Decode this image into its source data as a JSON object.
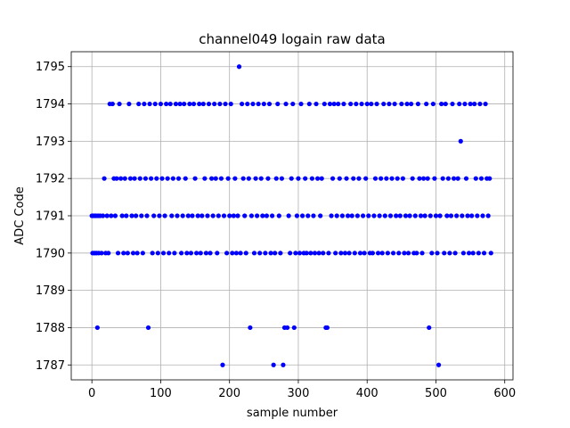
{
  "chart_data": {
    "type": "scatter",
    "title": "channel049 logain raw data",
    "xlabel": "sample number",
    "ylabel": "ADC Code",
    "xlim": [
      -30,
      612
    ],
    "ylim": [
      1786.6,
      1795.4
    ],
    "xticks": [
      0,
      100,
      200,
      300,
      400,
      500,
      600
    ],
    "yticks": [
      1787,
      1788,
      1789,
      1790,
      1791,
      1792,
      1793,
      1794,
      1795
    ],
    "grid": true,
    "marker_color": "#0000ff",
    "series": [
      {
        "points": [
          [
            0,
            1791
          ],
          [
            1,
            1790
          ],
          [
            2,
            1791
          ],
          [
            3,
            1790
          ],
          [
            4,
            1791
          ],
          [
            5,
            1790
          ],
          [
            6,
            1791
          ],
          [
            7,
            1790
          ],
          [
            8,
            1788
          ],
          [
            9,
            1791
          ],
          [
            10,
            1790
          ],
          [
            12,
            1791
          ],
          [
            14,
            1790
          ],
          [
            16,
            1791
          ],
          [
            18,
            1792
          ],
          [
            20,
            1790
          ],
          [
            22,
            1791
          ],
          [
            24,
            1790
          ],
          [
            26,
            1794
          ],
          [
            28,
            1791
          ],
          [
            30,
            1794
          ],
          [
            32,
            1792
          ],
          [
            34,
            1791
          ],
          [
            36,
            1792
          ],
          [
            38,
            1790
          ],
          [
            40,
            1794
          ],
          [
            42,
            1792
          ],
          [
            44,
            1791
          ],
          [
            46,
            1790
          ],
          [
            48,
            1792
          ],
          [
            50,
            1791
          ],
          [
            52,
            1790
          ],
          [
            54,
            1794
          ],
          [
            56,
            1792
          ],
          [
            58,
            1791
          ],
          [
            60,
            1790
          ],
          [
            62,
            1792
          ],
          [
            64,
            1791
          ],
          [
            66,
            1790
          ],
          [
            68,
            1794
          ],
          [
            70,
            1792
          ],
          [
            72,
            1791
          ],
          [
            74,
            1790
          ],
          [
            76,
            1794
          ],
          [
            78,
            1792
          ],
          [
            80,
            1791
          ],
          [
            82,
            1788
          ],
          [
            84,
            1794
          ],
          [
            86,
            1792
          ],
          [
            88,
            1790
          ],
          [
            90,
            1791
          ],
          [
            92,
            1794
          ],
          [
            94,
            1792
          ],
          [
            96,
            1790
          ],
          [
            98,
            1791
          ],
          [
            100,
            1794
          ],
          [
            102,
            1792
          ],
          [
            104,
            1790
          ],
          [
            106,
            1791
          ],
          [
            108,
            1794
          ],
          [
            110,
            1792
          ],
          [
            112,
            1790
          ],
          [
            114,
            1794
          ],
          [
            116,
            1791
          ],
          [
            118,
            1792
          ],
          [
            120,
            1790
          ],
          [
            122,
            1794
          ],
          [
            124,
            1791
          ],
          [
            126,
            1792
          ],
          [
            128,
            1794
          ],
          [
            130,
            1790
          ],
          [
            132,
            1791
          ],
          [
            134,
            1794
          ],
          [
            136,
            1792
          ],
          [
            138,
            1790
          ],
          [
            140,
            1791
          ],
          [
            142,
            1794
          ],
          [
            144,
            1790
          ],
          [
            146,
            1791
          ],
          [
            148,
            1794
          ],
          [
            150,
            1792
          ],
          [
            152,
            1790
          ],
          [
            154,
            1791
          ],
          [
            156,
            1794
          ],
          [
            158,
            1790
          ],
          [
            160,
            1791
          ],
          [
            162,
            1794
          ],
          [
            164,
            1792
          ],
          [
            166,
            1790
          ],
          [
            168,
            1791
          ],
          [
            170,
            1794
          ],
          [
            172,
            1790
          ],
          [
            174,
            1792
          ],
          [
            176,
            1791
          ],
          [
            178,
            1794
          ],
          [
            180,
            1792
          ],
          [
            182,
            1790
          ],
          [
            184,
            1791
          ],
          [
            186,
            1794
          ],
          [
            188,
            1792
          ],
          [
            190,
            1787
          ],
          [
            192,
            1791
          ],
          [
            194,
            1794
          ],
          [
            196,
            1790
          ],
          [
            198,
            1792
          ],
          [
            200,
            1791
          ],
          [
            202,
            1794
          ],
          [
            204,
            1790
          ],
          [
            206,
            1791
          ],
          [
            208,
            1792
          ],
          [
            210,
            1790
          ],
          [
            212,
            1791
          ],
          [
            214,
            1795
          ],
          [
            216,
            1790
          ],
          [
            218,
            1794
          ],
          [
            220,
            1792
          ],
          [
            222,
            1791
          ],
          [
            224,
            1790
          ],
          [
            226,
            1794
          ],
          [
            228,
            1792
          ],
          [
            230,
            1788
          ],
          [
            232,
            1791
          ],
          [
            234,
            1794
          ],
          [
            236,
            1790
          ],
          [
            238,
            1792
          ],
          [
            240,
            1791
          ],
          [
            242,
            1794
          ],
          [
            244,
            1790
          ],
          [
            246,
            1792
          ],
          [
            248,
            1791
          ],
          [
            250,
            1794
          ],
          [
            252,
            1790
          ],
          [
            254,
            1791
          ],
          [
            256,
            1792
          ],
          [
            258,
            1794
          ],
          [
            260,
            1790
          ],
          [
            262,
            1791
          ],
          [
            264,
            1787
          ],
          [
            266,
            1790
          ],
          [
            268,
            1792
          ],
          [
            270,
            1794
          ],
          [
            272,
            1791
          ],
          [
            274,
            1790
          ],
          [
            276,
            1792
          ],
          [
            278,
            1787
          ],
          [
            280,
            1788
          ],
          [
            282,
            1794
          ],
          [
            284,
            1788
          ],
          [
            286,
            1791
          ],
          [
            288,
            1790
          ],
          [
            290,
            1792
          ],
          [
            292,
            1794
          ],
          [
            294,
            1788
          ],
          [
            296,
            1790
          ],
          [
            298,
            1791
          ],
          [
            300,
            1792
          ],
          [
            302,
            1790
          ],
          [
            304,
            1794
          ],
          [
            306,
            1791
          ],
          [
            308,
            1790
          ],
          [
            310,
            1792
          ],
          [
            312,
            1790
          ],
          [
            314,
            1791
          ],
          [
            316,
            1794
          ],
          [
            318,
            1790
          ],
          [
            320,
            1792
          ],
          [
            322,
            1791
          ],
          [
            324,
            1790
          ],
          [
            326,
            1794
          ],
          [
            328,
            1792
          ],
          [
            330,
            1790
          ],
          [
            332,
            1791
          ],
          [
            334,
            1792
          ],
          [
            336,
            1790
          ],
          [
            338,
            1794
          ],
          [
            340,
            1788
          ],
          [
            342,
            1788
          ],
          [
            344,
            1790
          ],
          [
            346,
            1794
          ],
          [
            348,
            1791
          ],
          [
            350,
            1792
          ],
          [
            352,
            1794
          ],
          [
            354,
            1790
          ],
          [
            356,
            1791
          ],
          [
            358,
            1794
          ],
          [
            360,
            1792
          ],
          [
            362,
            1790
          ],
          [
            364,
            1791
          ],
          [
            366,
            1794
          ],
          [
            368,
            1790
          ],
          [
            370,
            1792
          ],
          [
            372,
            1791
          ],
          [
            374,
            1790
          ],
          [
            376,
            1794
          ],
          [
            378,
            1791
          ],
          [
            380,
            1792
          ],
          [
            382,
            1790
          ],
          [
            384,
            1794
          ],
          [
            386,
            1791
          ],
          [
            388,
            1792
          ],
          [
            390,
            1790
          ],
          [
            392,
            1794
          ],
          [
            394,
            1791
          ],
          [
            396,
            1790
          ],
          [
            398,
            1792
          ],
          [
            400,
            1794
          ],
          [
            402,
            1791
          ],
          [
            404,
            1790
          ],
          [
            406,
            1794
          ],
          [
            408,
            1790
          ],
          [
            410,
            1791
          ],
          [
            412,
            1792
          ],
          [
            414,
            1794
          ],
          [
            416,
            1790
          ],
          [
            418,
            1791
          ],
          [
            420,
            1792
          ],
          [
            422,
            1790
          ],
          [
            424,
            1794
          ],
          [
            426,
            1791
          ],
          [
            428,
            1792
          ],
          [
            430,
            1790
          ],
          [
            432,
            1794
          ],
          [
            434,
            1791
          ],
          [
            436,
            1792
          ],
          [
            438,
            1790
          ],
          [
            440,
            1794
          ],
          [
            442,
            1791
          ],
          [
            444,
            1792
          ],
          [
            446,
            1790
          ],
          [
            448,
            1791
          ],
          [
            450,
            1794
          ],
          [
            452,
            1792
          ],
          [
            454,
            1790
          ],
          [
            456,
            1791
          ],
          [
            458,
            1794
          ],
          [
            460,
            1790
          ],
          [
            462,
            1791
          ],
          [
            464,
            1794
          ],
          [
            466,
            1792
          ],
          [
            468,
            1790
          ],
          [
            470,
            1791
          ],
          [
            472,
            1790
          ],
          [
            474,
            1794
          ],
          [
            476,
            1792
          ],
          [
            478,
            1791
          ],
          [
            480,
            1790
          ],
          [
            482,
            1792
          ],
          [
            484,
            1791
          ],
          [
            486,
            1794
          ],
          [
            488,
            1792
          ],
          [
            490,
            1788
          ],
          [
            492,
            1791
          ],
          [
            494,
            1790
          ],
          [
            496,
            1794
          ],
          [
            498,
            1792
          ],
          [
            500,
            1791
          ],
          [
            502,
            1790
          ],
          [
            504,
            1787
          ],
          [
            506,
            1791
          ],
          [
            508,
            1794
          ],
          [
            510,
            1792
          ],
          [
            512,
            1790
          ],
          [
            514,
            1794
          ],
          [
            516,
            1791
          ],
          [
            518,
            1792
          ],
          [
            520,
            1790
          ],
          [
            522,
            1791
          ],
          [
            524,
            1794
          ],
          [
            526,
            1792
          ],
          [
            528,
            1790
          ],
          [
            530,
            1791
          ],
          [
            532,
            1792
          ],
          [
            534,
            1794
          ],
          [
            536,
            1793
          ],
          [
            538,
            1791
          ],
          [
            540,
            1790
          ],
          [
            542,
            1794
          ],
          [
            544,
            1792
          ],
          [
            546,
            1791
          ],
          [
            548,
            1790
          ],
          [
            550,
            1794
          ],
          [
            552,
            1791
          ],
          [
            554,
            1790
          ],
          [
            556,
            1794
          ],
          [
            558,
            1792
          ],
          [
            560,
            1791
          ],
          [
            562,
            1790
          ],
          [
            564,
            1794
          ],
          [
            566,
            1792
          ],
          [
            568,
            1791
          ],
          [
            570,
            1790
          ],
          [
            572,
            1794
          ],
          [
            574,
            1792
          ],
          [
            576,
            1791
          ],
          [
            578,
            1792
          ],
          [
            580,
            1790
          ]
        ]
      }
    ]
  }
}
